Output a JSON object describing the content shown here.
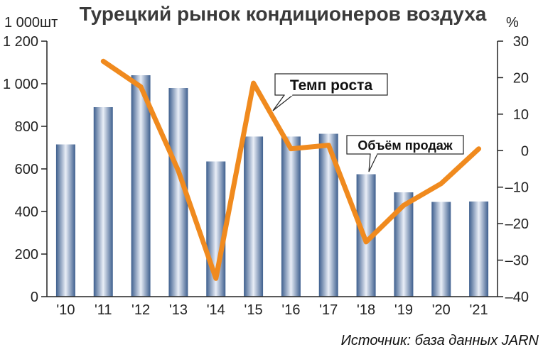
{
  "chart_data": {
    "type": "bar",
    "title": "Турецкий рынок кондиционеров воздуха",
    "categories": [
      "'10",
      "'11",
      "'12",
      "'13",
      "'14",
      "'15",
      "'16",
      "'17",
      "'18",
      "'19",
      "'20",
      "'21"
    ],
    "series": [
      {
        "name": "Объём продаж",
        "type": "bar",
        "axis": "left",
        "values": [
          715,
          890,
          1040,
          980,
          635,
          752,
          752,
          765,
          575,
          490,
          445,
          447
        ]
      },
      {
        "name": "Темп роста",
        "type": "line",
        "axis": "right",
        "values": [
          null,
          24.5,
          17.5,
          -5.5,
          -35,
          18.5,
          0.5,
          1.5,
          -25,
          -15,
          -9,
          0.5
        ]
      }
    ],
    "y_left": {
      "unit": "1 000шт",
      "ylim": [
        0,
        1200
      ],
      "ticks": [
        "0",
        "200",
        "400",
        "600",
        "800",
        "1 000",
        "1 200"
      ]
    },
    "y_right": {
      "unit": "%",
      "ylim": [
        -40,
        30
      ],
      "ticks": [
        "30",
        "20",
        "10",
        "0",
        "–10",
        "–20",
        "–30",
        "–40"
      ]
    },
    "grid": false,
    "source": "Источник: база данных JARN",
    "colors": {
      "bar_dark": "#3e5f8e",
      "bar_light": "#e9eef7",
      "line": "#f08a1e",
      "axis": "#222222"
    }
  }
}
